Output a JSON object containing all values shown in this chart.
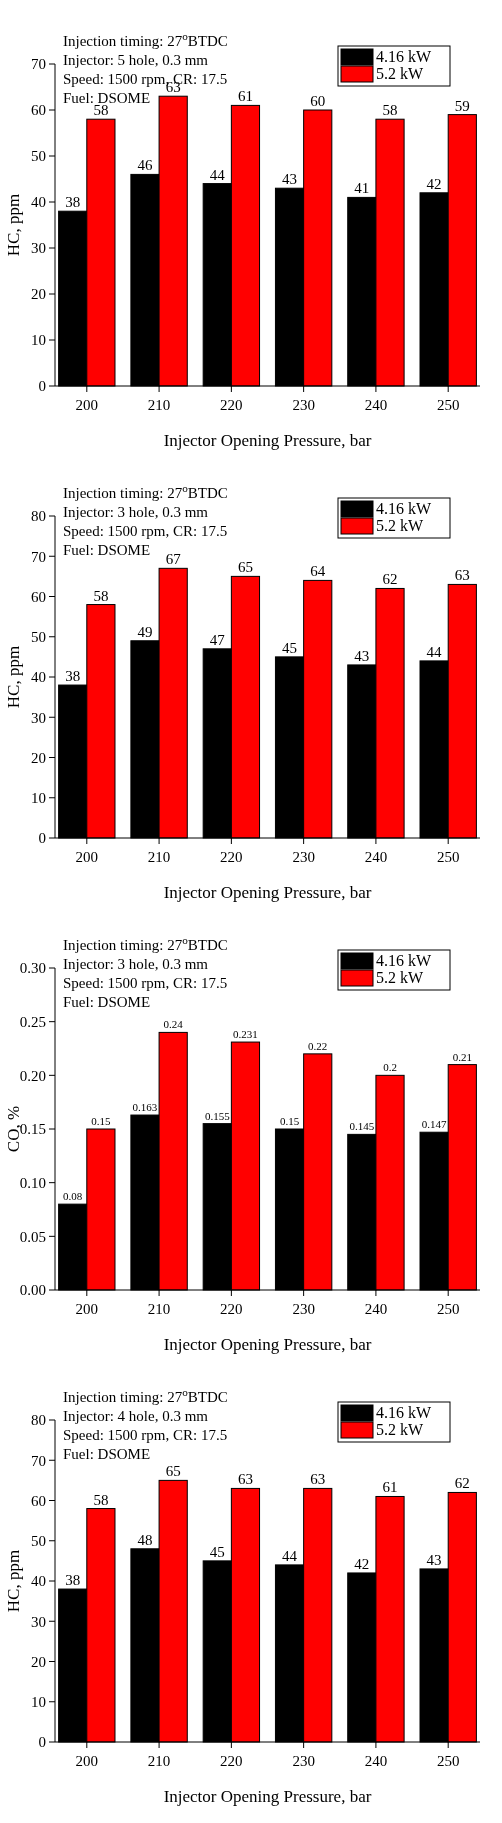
{
  "chart_data": [
    {
      "type": "bar",
      "xlabel": "Injector Opening Pressure, bar",
      "ylabel": "HC, ppm",
      "categories": [
        "200",
        "210",
        "220",
        "230",
        "240",
        "250"
      ],
      "series": [
        {
          "name": "4.16 kW",
          "color": "#000000",
          "values": [
            38,
            46,
            44,
            43,
            41,
            42
          ]
        },
        {
          "name": "5.2 kW",
          "color": "#ff0000",
          "values": [
            58,
            63,
            61,
            60,
            58,
            59
          ]
        }
      ],
      "ylim": [
        0,
        70
      ],
      "yticks": [
        0,
        10,
        20,
        30,
        40,
        50,
        60,
        70
      ],
      "data_labels": true,
      "legend": "top right",
      "grid": false,
      "annotations": [
        "Injection timing: 27$^{o}$BTDC",
        "Injector: 5 hole, 0.3 mm",
        "Speed: 1500 rpm, CR: 17.5",
        "Fuel: DSOME"
      ]
    },
    {
      "type": "bar",
      "xlabel": "Injector Opening Pressure, bar",
      "ylabel": "HC, ppm",
      "categories": [
        "200",
        "210",
        "220",
        "230",
        "240",
        "250"
      ],
      "series": [
        {
          "name": "4.16 kW",
          "color": "#000000",
          "values": [
            38,
            49,
            47,
            45,
            43,
            44
          ]
        },
        {
          "name": "5.2 kW",
          "color": "#ff0000",
          "values": [
            58,
            67,
            65,
            64,
            62,
            63
          ]
        }
      ],
      "ylim": [
        0,
        80
      ],
      "yticks": [
        0,
        10,
        20,
        30,
        40,
        50,
        60,
        70,
        80
      ],
      "data_labels": true,
      "legend": "top right",
      "grid": false,
      "annotations": [
        "Injection timing: 27$^{o}$BTDC",
        "Injector: 3 hole, 0.3 mm",
        "Speed: 1500 rpm, CR: 17.5",
        "Fuel: DSOME"
      ]
    },
    {
      "type": "bar",
      "xlabel": "Injector Opening Pressure, bar",
      "ylabel": "CO, %",
      "categories": [
        "200",
        "210",
        "220",
        "230",
        "240",
        "250"
      ],
      "series": [
        {
          "name": "4.16 kW",
          "color": "#000000",
          "values": [
            0.08,
            0.163,
            0.155,
            0.15,
            0.145,
            0.147
          ]
        },
        {
          "name": "5.2 kW",
          "color": "#ff0000",
          "values": [
            0.15,
            0.24,
            0.231,
            0.22,
            0.2,
            0.21
          ]
        }
      ],
      "ylim": [
        0,
        0.3
      ],
      "yticks": [
        {
          "value": 0,
          "label": "0.00"
        },
        0.05,
        {
          "value": 0.1,
          "label": "0.10"
        },
        0.15,
        {
          "value": 0.2,
          "label": "0.20"
        },
        0.25,
        {
          "value": 0.3,
          "label": "0.30"
        }
      ],
      "data_labels": true,
      "legend": "top right",
      "grid": false,
      "annotations": [
        "Injection timing: 27$^{o}$BTDC",
        "Injector: 3 hole, 0.3 mm",
        "Speed: 1500 rpm, CR: 17.5",
        "Fuel: DSOME"
      ]
    },
    {
      "type": "bar",
      "xlabel": "Injector Opening Pressure, bar",
      "ylabel": "HC, ppm",
      "categories": [
        "200",
        "210",
        "220",
        "230",
        "240",
        "250"
      ],
      "series": [
        {
          "name": "4.16 kW",
          "color": "#000000",
          "values": [
            38,
            48,
            45,
            44,
            42,
            43
          ]
        },
        {
          "name": "5.2 kW",
          "color": "#ff0000",
          "values": [
            58,
            65,
            63,
            63,
            61,
            62
          ]
        }
      ],
      "ylim": [
        0,
        80
      ],
      "yticks": [
        0,
        10,
        20,
        30,
        40,
        50,
        60,
        70,
        80
      ],
      "data_labels": true,
      "legend": "top right",
      "grid": false,
      "annotations": [
        "Injection timing: 27$^{o}$BTDC",
        "Injector: 4 hole, 0.3 mm",
        "Speed: 1500 rpm, CR: 17.5",
        "Fuel: DSOME"
      ]
    }
  ]
}
